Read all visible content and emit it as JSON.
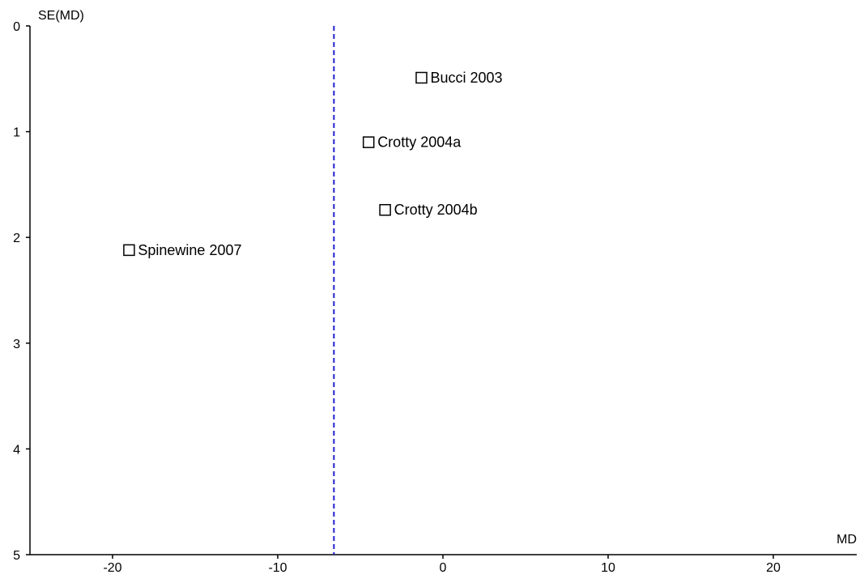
{
  "chart_data": {
    "type": "scatter",
    "title": "",
    "xlabel": "MD",
    "ylabel": "SE(MD)",
    "xlim": [
      -25,
      25
    ],
    "ylim": [
      0,
      5
    ],
    "y_inverted": true,
    "grid": false,
    "x_ticks": [
      -20,
      -10,
      0,
      10,
      20
    ],
    "y_ticks": [
      0,
      1,
      2,
      3,
      4,
      5
    ],
    "reference_line": {
      "x": -6.6,
      "style": "dashed",
      "color": "#2020d0"
    },
    "points": [
      {
        "label": "Bucci 2003",
        "x": -1.3,
        "y": 0.49
      },
      {
        "label": "Crotty 2004a",
        "x": -4.5,
        "y": 1.1
      },
      {
        "label": "Crotty 2004b",
        "x": -3.5,
        "y": 1.74
      },
      {
        "label": "Spinewine 2007",
        "x": -19.0,
        "y": 2.12
      }
    ]
  }
}
